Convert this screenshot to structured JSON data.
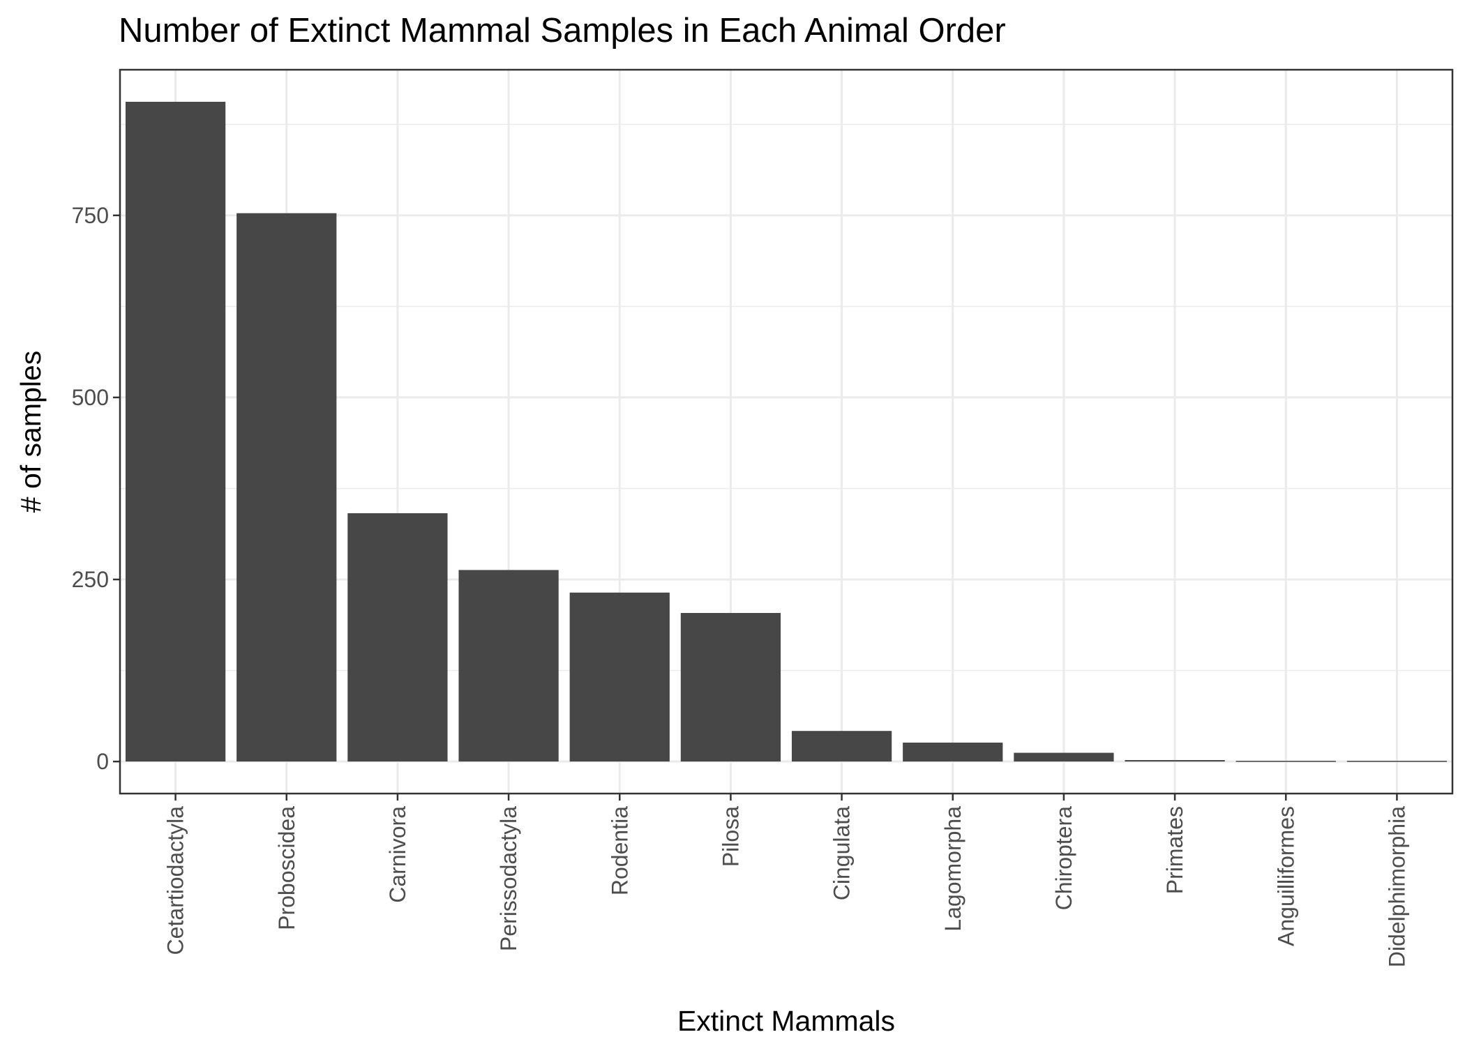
{
  "chart_data": {
    "type": "bar",
    "title": "Number of Extinct Mammal Samples in Each Animal Order",
    "xlabel": "Extinct Mammals",
    "ylabel": "# of samples",
    "categories": [
      "Cetartiodactyla",
      "Proboscidea",
      "Carnivora",
      "Perissodactyla",
      "Rodentia",
      "Pilosa",
      "Cingulata",
      "Lagomorpha",
      "Chiroptera",
      "Primates",
      "Anguilliformes",
      "Didelphimorphia"
    ],
    "values": [
      906,
      753,
      341,
      263,
      232,
      204,
      42,
      26,
      12,
      2,
      1,
      1
    ],
    "yticks": [
      0,
      250,
      500,
      750
    ],
    "ytick_labels": [
      "0",
      "250",
      "500",
      "750"
    ],
    "ylim": [
      -44,
      950
    ],
    "grid": true,
    "bar_color": "#474747",
    "legend": "none"
  }
}
